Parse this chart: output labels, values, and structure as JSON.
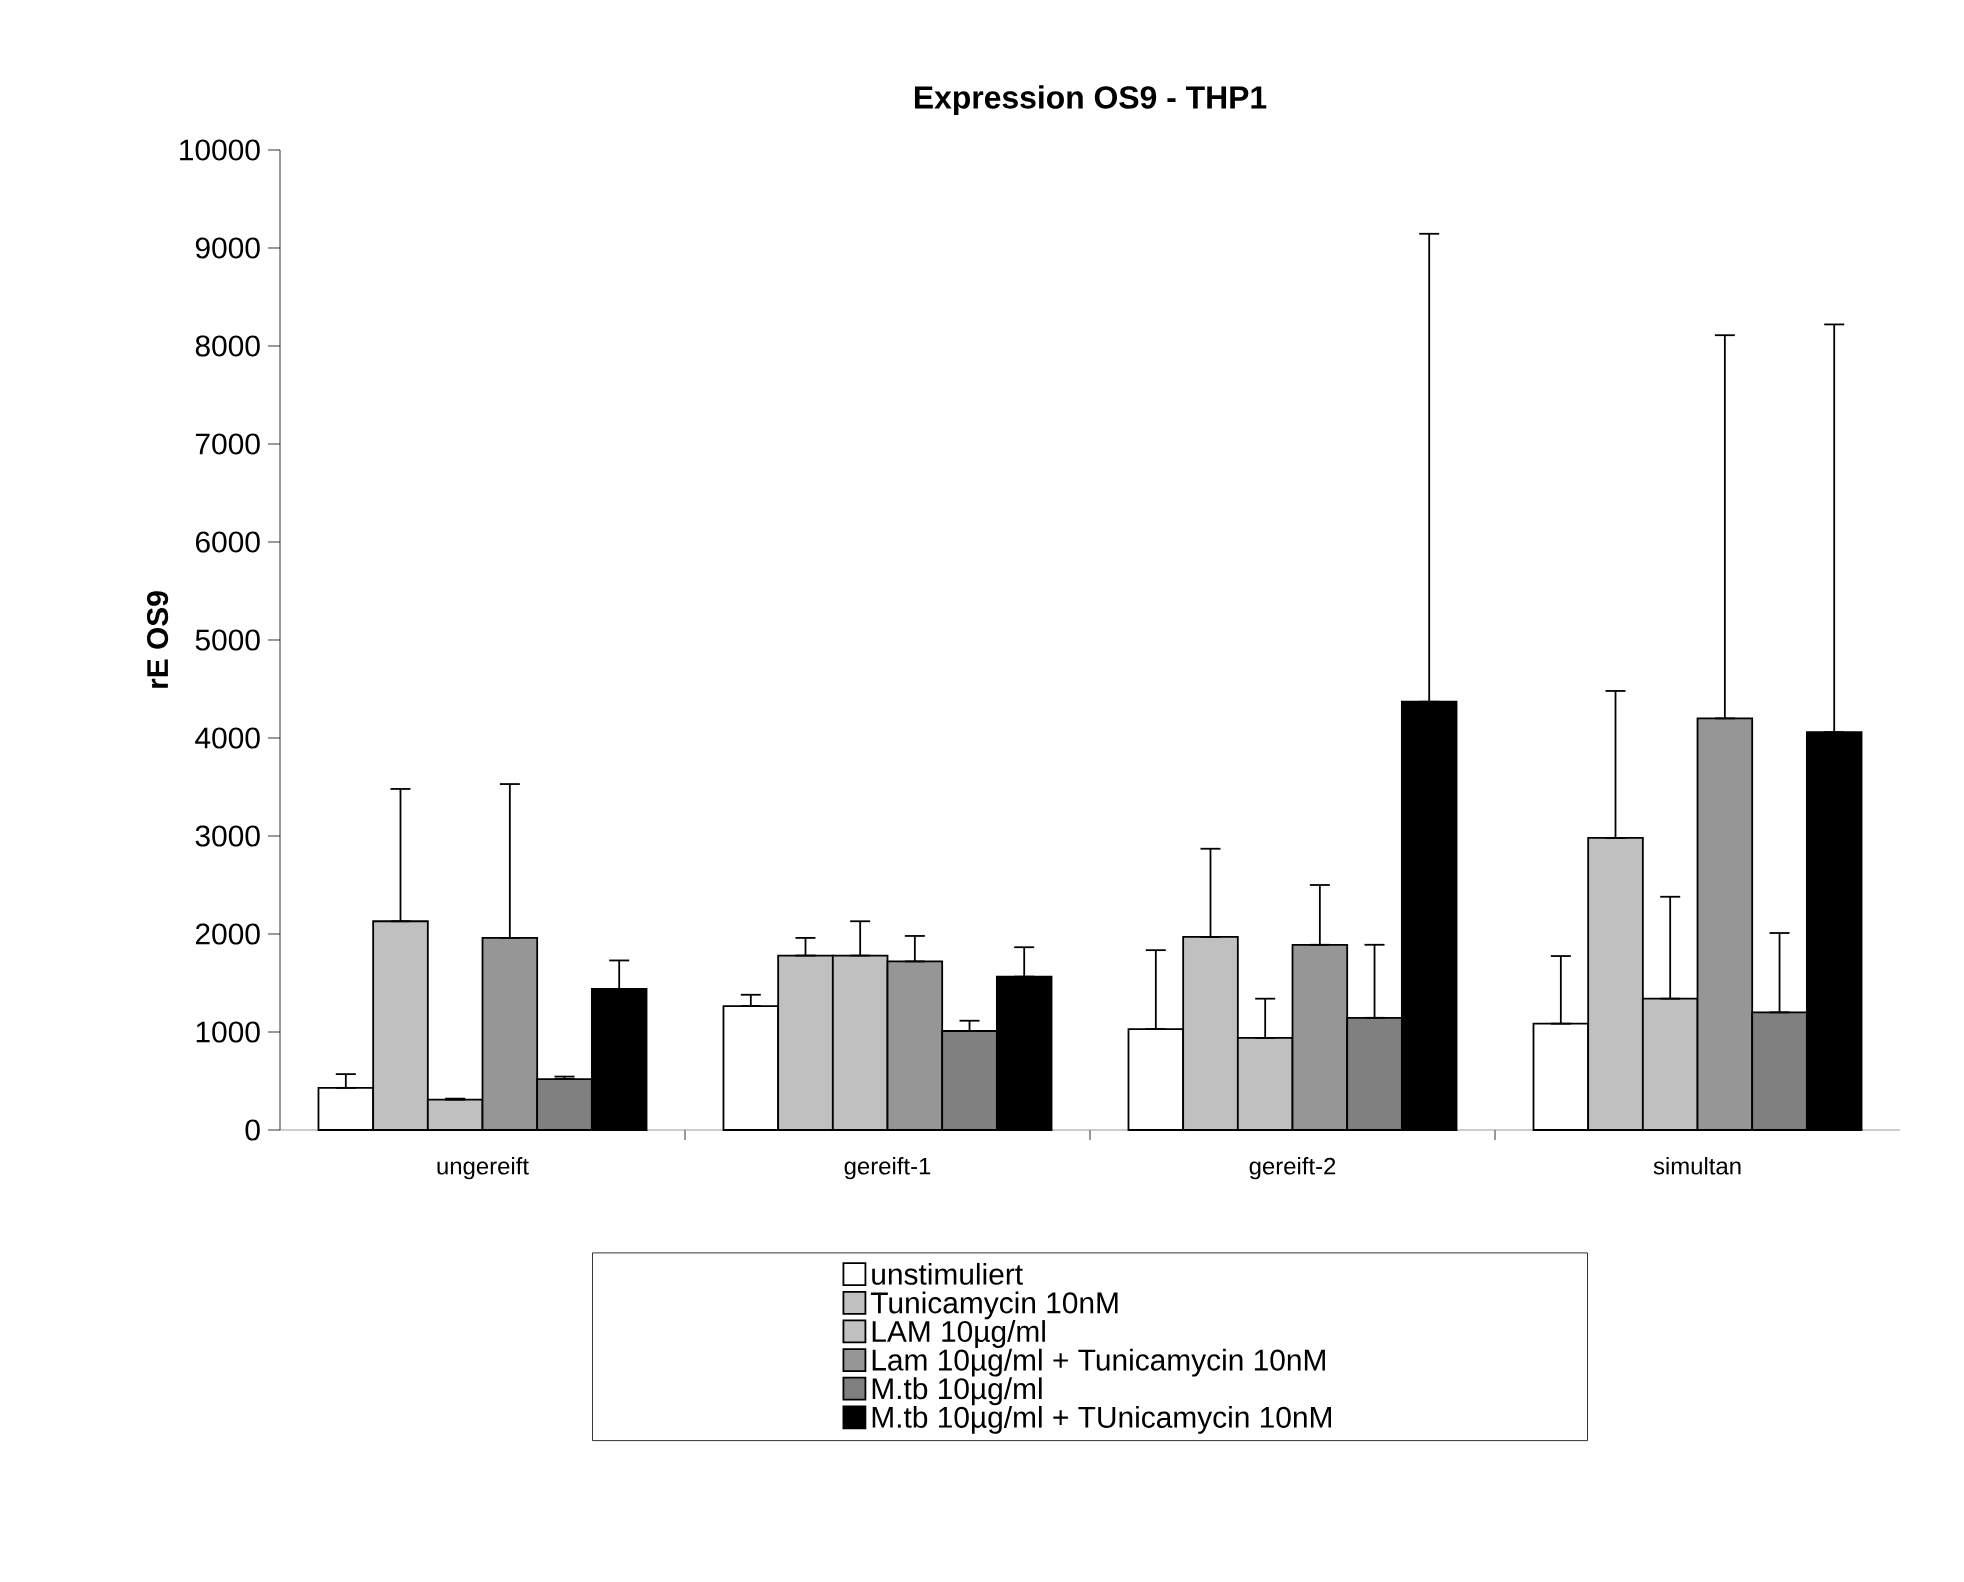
{
  "chart_data": {
    "type": "bar",
    "title": "Expression OS9 - THP1",
    "ylabel": "rE OS9",
    "categories": [
      "ungereift",
      "gereift-1",
      "gereift-2",
      "simultan"
    ],
    "series": [
      {
        "name": "unstimuliert",
        "color": "#ffffff",
        "values": [
          430,
          1265,
          1030,
          1085
        ],
        "errors": [
          [
            430,
            570
          ],
          [
            1265,
            1380
          ],
          [
            1030,
            1835
          ],
          [
            1085,
            1775
          ]
        ]
      },
      {
        "name": "Tunicamycin 10nM",
        "color": "#c0c0c0",
        "values": [
          2130,
          1780,
          1970,
          2980
        ],
        "errors": [
          [
            2130,
            3480
          ],
          [
            1780,
            1960
          ],
          [
            1970,
            2870
          ],
          [
            2980,
            4480
          ]
        ]
      },
      {
        "name": "LAM 10µg/ml",
        "color": "#c0c0c0",
        "values": [
          310,
          1780,
          940,
          1340
        ],
        "errors": [
          [
            310,
            320
          ],
          [
            1780,
            2130
          ],
          [
            940,
            1340
          ],
          [
            1340,
            2380
          ]
        ]
      },
      {
        "name": "Lam 10µg/ml + Tunicamycin 10nM",
        "color": "#969696",
        "values": [
          1960,
          1720,
          1890,
          4200
        ],
        "errors": [
          [
            1960,
            3530
          ],
          [
            1720,
            1980
          ],
          [
            1890,
            2500
          ],
          [
            4200,
            8110
          ]
        ]
      },
      {
        "name": "M.tb 10µg/ml",
        "color": "#808080",
        "values": [
          520,
          1010,
          1145,
          1200
        ],
        "errors": [
          [
            520,
            545
          ],
          [
            1010,
            1115
          ],
          [
            1145,
            1890
          ],
          [
            1200,
            2010
          ]
        ]
      },
      {
        "name": "M.tb 10µg/ml + TUnicamycin 10nM",
        "color": "#000000",
        "values": [
          1440,
          1565,
          4370,
          4060
        ],
        "errors": [
          [
            1440,
            1730
          ],
          [
            1565,
            1865
          ],
          [
            4370,
            9145
          ],
          [
            4060,
            8220
          ]
        ]
      }
    ],
    "ylim": [
      0,
      10000
    ],
    "yticks": [
      0,
      1000,
      2000,
      3000,
      4000,
      5000,
      6000,
      7000,
      8000,
      9000,
      10000
    ],
    "legend": "bottom",
    "grid": false
  }
}
